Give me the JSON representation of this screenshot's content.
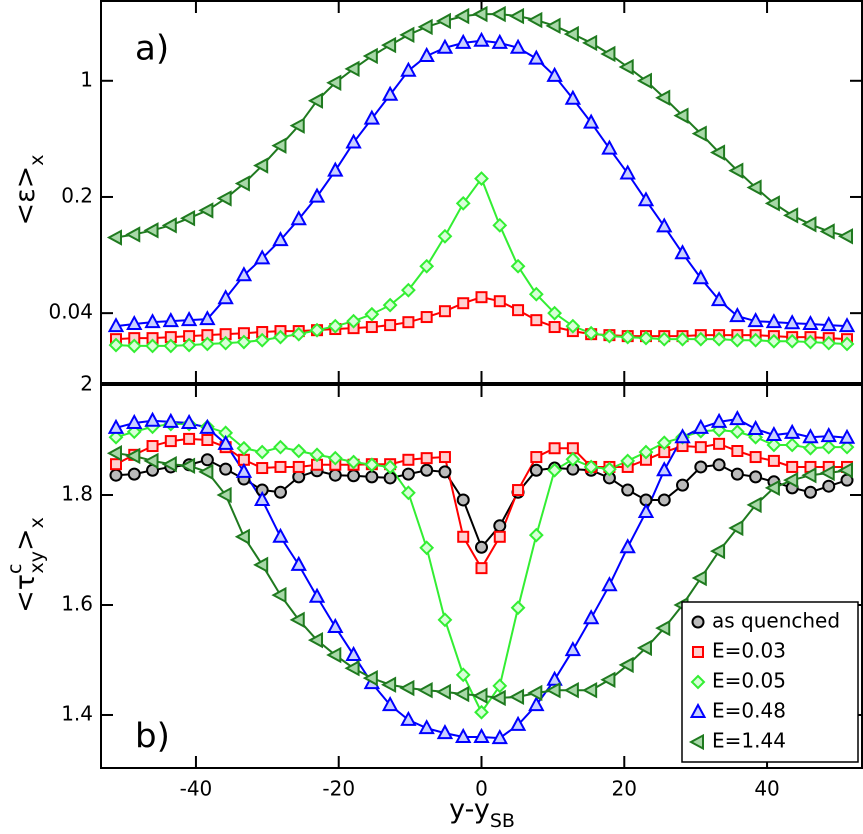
{
  "chart_data": [
    {
      "type": "line",
      "panel_label": "a)",
      "ylabel": [
        "<ε>",
        "x"
      ],
      "yscale": "log",
      "xlim": [
        -53.3,
        53.3
      ],
      "xticks": [
        -40,
        -20,
        0,
        20,
        40
      ],
      "show_xtick_labels": false,
      "ylim": [
        0.0152,
        3.02
      ],
      "yticks": [
        0.04,
        0.2,
        1
      ],
      "x": [
        -51.2,
        -48.64,
        -46.08,
        -43.52,
        -40.96,
        -38.4,
        -35.84,
        -33.28,
        -30.72,
        -28.16,
        -25.6,
        -23.04,
        -20.48,
        -17.92,
        -15.36,
        -12.8,
        -10.24,
        -7.68,
        -5.12,
        -2.56,
        0,
        2.56,
        5.12,
        7.68,
        10.24,
        12.8,
        15.36,
        17.92,
        20.48,
        23.04,
        25.6,
        28.16,
        30.72,
        33.28,
        35.84,
        38.4,
        40.96,
        43.52,
        46.08,
        48.64,
        51.2
      ],
      "series": [
        {
          "name": "E=0.03",
          "color": "#ff0000",
          "marker": "square",
          "values": [
            0.0279,
            0.0283,
            0.0283,
            0.0287,
            0.0291,
            0.0295,
            0.0299,
            0.0303,
            0.0308,
            0.0312,
            0.0312,
            0.0316,
            0.0321,
            0.0325,
            0.033,
            0.0339,
            0.0353,
            0.0379,
            0.0411,
            0.0459,
            0.0499,
            0.0472,
            0.0417,
            0.0363,
            0.033,
            0.0312,
            0.0299,
            0.0295,
            0.0291,
            0.0291,
            0.0291,
            0.0291,
            0.0295,
            0.0295,
            0.0295,
            0.0295,
            0.0291,
            0.0287,
            0.0287,
            0.0283,
            0.0279
          ]
        },
        {
          "name": "E=0.05",
          "color": "#33ee33",
          "marker": "diamond",
          "values": [
            0.0257,
            0.0254,
            0.0254,
            0.0254,
            0.0257,
            0.0261,
            0.0264,
            0.0268,
            0.0275,
            0.0287,
            0.0299,
            0.0316,
            0.0334,
            0.0358,
            0.0394,
            0.0447,
            0.055,
            0.0766,
            0.116,
            0.183,
            0.258,
            0.135,
            0.0766,
            0.052,
            0.04,
            0.0334,
            0.0303,
            0.0291,
            0.0287,
            0.0283,
            0.0279,
            0.0279,
            0.0279,
            0.0279,
            0.0275,
            0.0275,
            0.0271,
            0.0271,
            0.0268,
            0.0264,
            0.0261
          ]
        },
        {
          "name": "E=0.48",
          "color": "#0000ff",
          "marker": "triangle-up",
          "values": [
            0.0334,
            0.0344,
            0.0353,
            0.0358,
            0.0363,
            0.0368,
            0.0492,
            0.0676,
            0.0855,
            0.11,
            0.147,
            0.201,
            0.288,
            0.425,
            0.592,
            0.824,
            1.15,
            1.41,
            1.58,
            1.69,
            1.74,
            1.69,
            1.58,
            1.36,
            1.07,
            0.78,
            0.56,
            0.391,
            0.277,
            0.191,
            0.133,
            0.0917,
            0.0649,
            0.0479,
            0.0384,
            0.0358,
            0.0353,
            0.0348,
            0.0344,
            0.0339,
            0.0334
          ]
        },
        {
          "name": "E=1.44",
          "color": "#1f7a1f",
          "marker": "triangle-left",
          "values": [
            0.114,
            0.119,
            0.126,
            0.135,
            0.149,
            0.166,
            0.196,
            0.241,
            0.309,
            0.407,
            0.537,
            0.759,
            0.973,
            1.18,
            1.41,
            1.64,
            1.89,
            2.11,
            2.29,
            2.45,
            2.52,
            2.52,
            2.45,
            2.32,
            2.14,
            1.91,
            1.69,
            1.45,
            1.21,
            1.0,
            0.791,
            0.617,
            0.481,
            0.37,
            0.288,
            0.228,
            0.183,
            0.155,
            0.137,
            0.124,
            0.116
          ]
        }
      ]
    },
    {
      "type": "line",
      "panel_label": "b)",
      "ylabel": [
        "<τ",
        "c",
        "xy",
        ">",
        "x"
      ],
      "xlabel": [
        "y-y",
        "SB"
      ],
      "xlim": [
        -53.3,
        53.3
      ],
      "xticks": [
        -40,
        -20,
        0,
        20,
        40
      ],
      "show_xtick_labels": true,
      "ylim": [
        1.3036,
        2.0
      ],
      "yticks": [
        1.4,
        1.6,
        1.8,
        2
      ],
      "legend": "lower right",
      "x": [
        -51.2,
        -48.64,
        -46.08,
        -43.52,
        -40.96,
        -38.4,
        -35.84,
        -33.28,
        -30.72,
        -28.16,
        -25.6,
        -23.04,
        -20.48,
        -17.92,
        -15.36,
        -12.8,
        -10.24,
        -7.68,
        -5.12,
        -2.56,
        0,
        2.56,
        5.12,
        7.68,
        10.24,
        12.8,
        15.36,
        17.92,
        20.48,
        23.04,
        25.6,
        28.16,
        30.72,
        33.28,
        35.84,
        38.4,
        40.96,
        43.52,
        46.08,
        48.64,
        51.2
      ],
      "series": [
        {
          "name": "as quenched",
          "color": "#000000",
          "marker": "circle",
          "values": [
            1.836,
            1.838,
            1.845,
            1.851,
            1.855,
            1.864,
            1.847,
            1.829,
            1.809,
            1.805,
            1.833,
            1.844,
            1.836,
            1.835,
            1.833,
            1.831,
            1.838,
            1.845,
            1.842,
            1.791,
            1.705,
            1.744,
            1.805,
            1.845,
            1.849,
            1.847,
            1.845,
            1.831,
            1.809,
            1.791,
            1.791,
            1.818,
            1.851,
            1.855,
            1.838,
            1.833,
            1.824,
            1.813,
            1.805,
            1.816,
            1.827
          ]
        },
        {
          "name": "E=0.03",
          "color": "#ff0000",
          "marker": "square",
          "values": [
            1.856,
            1.873,
            1.889,
            1.898,
            1.902,
            1.9,
            1.887,
            1.864,
            1.849,
            1.851,
            1.851,
            1.855,
            1.855,
            1.855,
            1.856,
            1.856,
            1.864,
            1.867,
            1.869,
            1.724,
            1.667,
            1.724,
            1.809,
            1.869,
            1.885,
            1.885,
            1.851,
            1.851,
            1.851,
            1.864,
            1.878,
            1.889,
            1.887,
            1.893,
            1.88,
            1.869,
            1.862,
            1.851,
            1.851,
            1.851,
            1.851
          ]
        },
        {
          "name": "E=0.05",
          "color": "#33ee33",
          "marker": "diamond",
          "values": [
            1.905,
            1.915,
            1.924,
            1.929,
            1.929,
            1.924,
            1.913,
            1.885,
            1.878,
            1.887,
            1.88,
            1.873,
            1.867,
            1.86,
            1.855,
            1.851,
            1.804,
            1.704,
            1.573,
            1.473,
            1.405,
            1.453,
            1.595,
            1.727,
            1.845,
            1.865,
            1.851,
            1.847,
            1.862,
            1.878,
            1.895,
            1.905,
            1.916,
            1.918,
            1.915,
            1.905,
            1.891,
            1.891,
            1.885,
            1.887,
            1.887
          ]
        },
        {
          "name": "E=0.48",
          "color": "#0000ff",
          "marker": "triangle-up",
          "values": [
            1.922,
            1.931,
            1.935,
            1.933,
            1.931,
            1.922,
            1.893,
            1.842,
            1.791,
            1.724,
            1.673,
            1.615,
            1.56,
            1.509,
            1.458,
            1.418,
            1.391,
            1.376,
            1.367,
            1.36,
            1.36,
            1.358,
            1.382,
            1.418,
            1.464,
            1.518,
            1.576,
            1.636,
            1.705,
            1.769,
            1.845,
            1.905,
            1.922,
            1.933,
            1.938,
            1.92,
            1.909,
            1.913,
            1.905,
            1.907,
            1.904
          ]
        },
        {
          "name": "E=1.44",
          "color": "#1f7a1f",
          "marker": "triangle-left",
          "values": [
            1.876,
            1.871,
            1.862,
            1.856,
            1.853,
            1.842,
            1.8,
            1.724,
            1.673,
            1.618,
            1.573,
            1.536,
            1.509,
            1.485,
            1.467,
            1.455,
            1.449,
            1.445,
            1.442,
            1.438,
            1.435,
            1.431,
            1.433,
            1.44,
            1.445,
            1.445,
            1.445,
            1.464,
            1.491,
            1.522,
            1.558,
            1.6,
            1.649,
            1.698,
            1.74,
            1.782,
            1.813,
            1.827,
            1.836,
            1.84,
            1.845
          ]
        }
      ]
    }
  ]
}
